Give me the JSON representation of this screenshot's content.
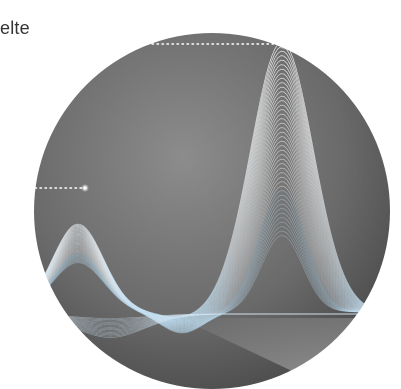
{
  "caption": {
    "text": "elte"
  },
  "colors": {
    "circle_center": "#8c8c8c",
    "circle_edge": "#454545",
    "wave_light": "#ffffff",
    "wave_blue": "#bcdcf0",
    "leader_dots": "#ffffff"
  },
  "icons": {
    "highlight_points": "glow-dot-icon"
  }
}
